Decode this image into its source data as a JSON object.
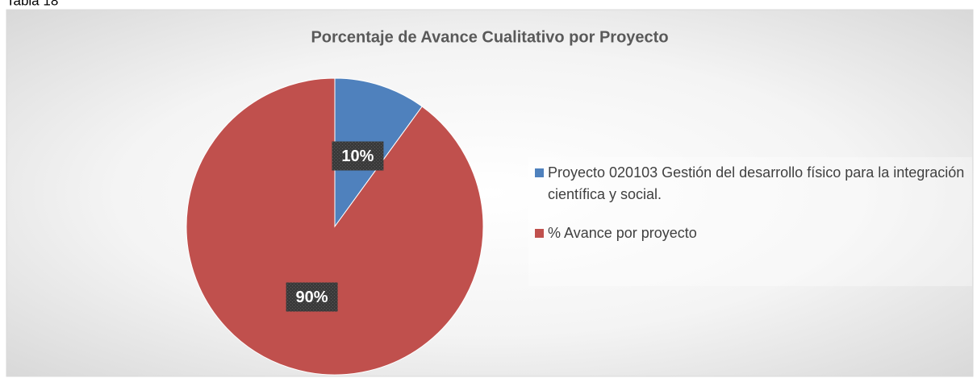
{
  "caption": "Tabla 18",
  "chart_data": {
    "type": "pie",
    "title": "Porcentaje de Avance Cualitativo por Proyecto",
    "categories": [
      "Proyecto 020103 Gestión del desarrollo físico para la integración científica y social.",
      "% Avance por proyecto"
    ],
    "values": [
      10,
      90
    ],
    "value_labels": [
      "10%",
      "90%"
    ],
    "colors": [
      "#4f81bd",
      "#c0504d"
    ],
    "legend": "right"
  }
}
